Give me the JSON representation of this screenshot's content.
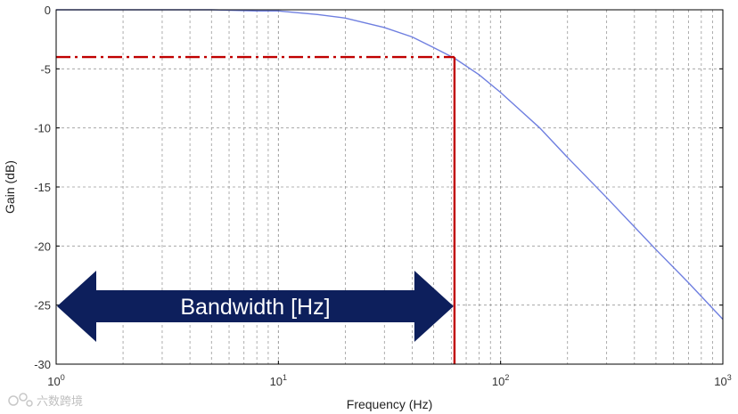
{
  "chart_data": {
    "type": "line",
    "xlabel": "Frequency (Hz)",
    "ylabel": "Gain (dB)",
    "x_scale": "log",
    "xlim": [
      1,
      1000
    ],
    "ylim": [
      -30,
      0
    ],
    "grid": true,
    "x_tick_labels": [
      {
        "base": "10",
        "exp": "0"
      },
      {
        "base": "10",
        "exp": "1"
      },
      {
        "base": "10",
        "exp": "2"
      },
      {
        "base": "10",
        "exp": "3"
      }
    ],
    "y_tick_labels": [
      "0",
      "-5",
      "-10",
      "-15",
      "-20",
      "-25",
      "-30"
    ],
    "y_ticks": [
      0,
      -5,
      -10,
      -15,
      -20,
      -25,
      -30
    ],
    "series": [
      {
        "color": "#6f7fe0",
        "x": [
          1,
          3,
          5,
          8,
          10,
          15,
          20,
          30,
          40,
          50,
          62,
          80,
          100,
          150,
          200,
          300,
          500,
          700,
          1000
        ],
        "y": [
          0,
          0,
          0,
          -0.1,
          -0.1,
          -0.4,
          -0.7,
          -1.5,
          -2.3,
          -3.2,
          -4.1,
          -5.5,
          -7.0,
          -10.0,
          -12.5,
          -15.9,
          -20.3,
          -23.1,
          -26.2
        ]
      }
    ],
    "annotations": {
      "cutoff_gain": -4,
      "cutoff_frequency": 62,
      "marker_color": "#c00000",
      "bandwidth_label": "Bandwidth [Hz]",
      "arrow_color": "#0d1f5c"
    }
  },
  "watermark": {
    "text": "六数跨境"
  }
}
